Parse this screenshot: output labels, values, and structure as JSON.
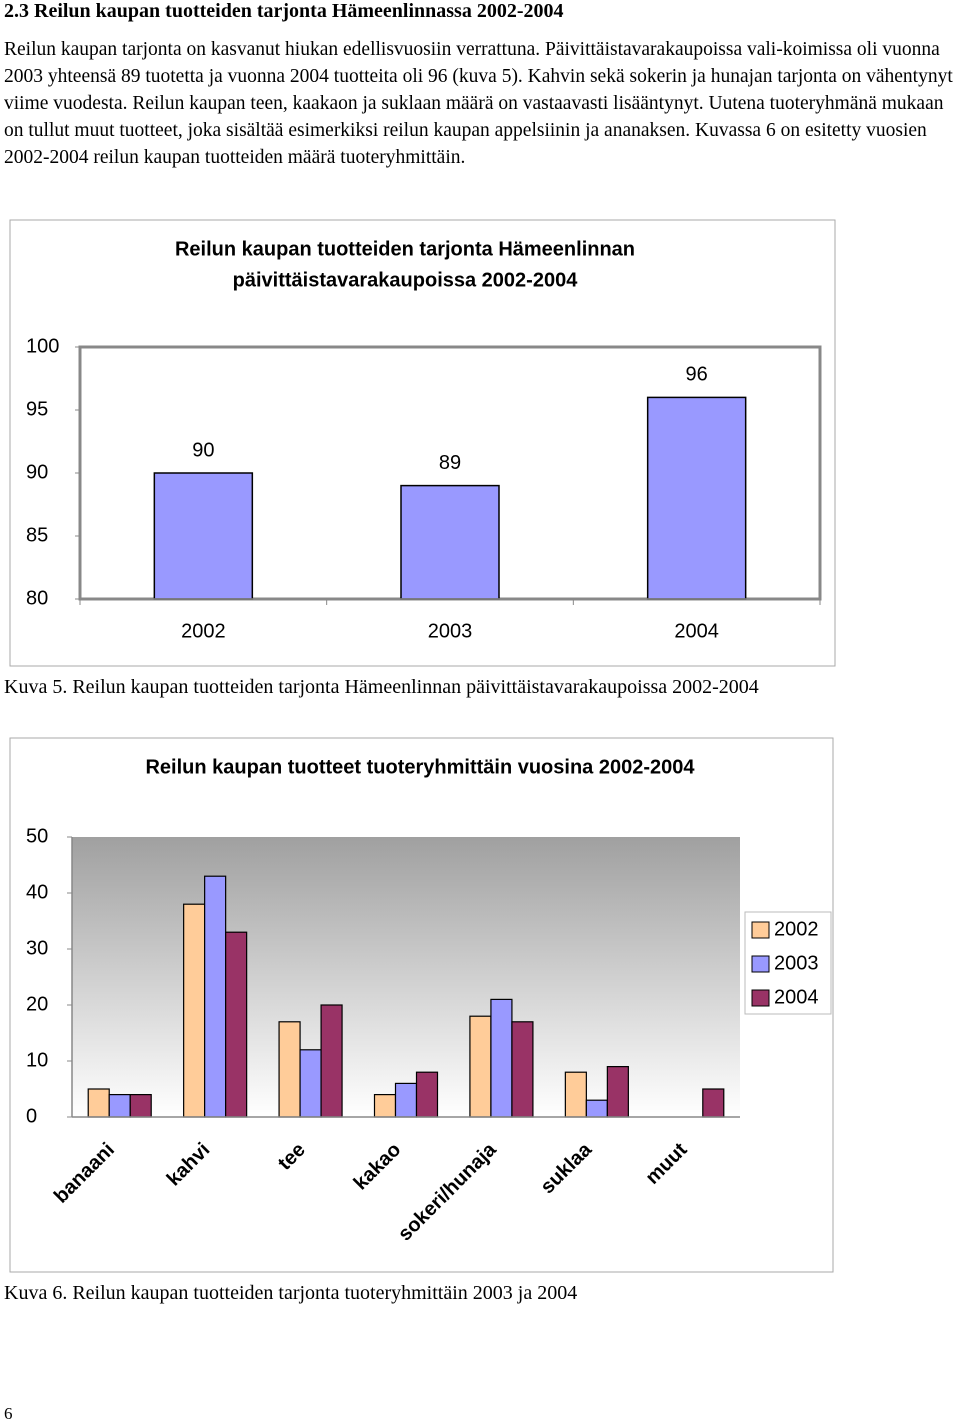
{
  "heading": "2.3 Reilun kaupan tuotteiden tarjonta Hämeenlinnassa 2002-2004",
  "paragraph": "Reilun kaupan tarjonta on kasvanut hiukan edellisvuosiin verrattuna. Päivittäistavarakaupoissa vali-koimissa oli vuonna 2003 yhteensä 89 tuotetta ja vuonna 2004 tuotteita oli 96 (kuva 5). Kahvin sekä sokerin ja hunajan tarjonta on vähentynyt viime vuodesta. Reilun kaupan teen, kaakaon ja suklaan määrä on vastaavasti lisääntynyt. Uutena tuoteryhmänä mukaan on tullut muut tuotteet, joka sisältää esimerkiksi reilun kaupan appelsiinin ja ananaksen. Kuvassa 6 on esitetty vuosien 2002-2004 reilun kaupan tuotteiden määrä tuoteryhmittäin.",
  "chart_data": [
    {
      "type": "bar",
      "title": [
        "Reilun kaupan tuotteiden tarjonta Hämeenlinnan",
        "päivittäistavarakaupoissa 2002-2004"
      ],
      "categories": [
        "2002",
        "2003",
        "2004"
      ],
      "values": [
        90,
        89,
        96
      ],
      "color": "#9999ff",
      "ylim": [
        80,
        100
      ],
      "yticks": [
        80,
        85,
        90,
        95,
        100
      ],
      "grid": false
    },
    {
      "type": "grouped-bar",
      "title": [
        "Reilun kaupan tuotteet tuoteryhmittäin vuosina 2002-2004"
      ],
      "categories": [
        "banaani",
        "kahvi",
        "tee",
        "kakao",
        "sokeri/hunaja",
        "suklaa",
        "muut"
      ],
      "series": [
        {
          "name": "2002",
          "color": "#ffcc99",
          "values": [
            5,
            38,
            17,
            4,
            18,
            8,
            null
          ]
        },
        {
          "name": "2003",
          "color": "#9999ff",
          "values": [
            4,
            43,
            12,
            6,
            21,
            3,
            null
          ]
        },
        {
          "name": "2004",
          "color": "#993366",
          "values": [
            4,
            33,
            20,
            8,
            17,
            9,
            5
          ]
        }
      ],
      "ylim": [
        0,
        50
      ],
      "yticks": [
        0,
        10,
        20,
        30,
        40,
        50
      ],
      "grid": false,
      "legend": "right"
    }
  ],
  "captions": [
    "Kuva 5. Reilun kaupan tuotteiden tarjonta Hämeenlinnan päivittäistavarakaupoissa 2002-2004",
    "Kuva 6. Reilun kaupan tuotteiden tarjonta tuoteryhmittäin 2003 ja 2004"
  ],
  "page_number": "6"
}
